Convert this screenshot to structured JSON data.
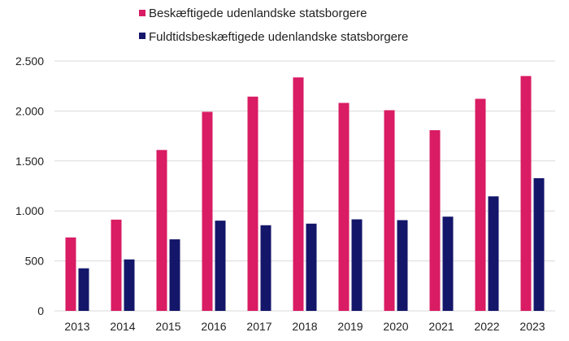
{
  "chart_data": {
    "type": "bar",
    "title": "",
    "xlabel": "",
    "ylabel": "",
    "ylim": [
      0,
      2500
    ],
    "yticks": [
      0,
      500,
      1000,
      1500,
      2000,
      2500
    ],
    "ytick_labels": [
      "0",
      "500",
      "1.000",
      "1.500",
      "2.000",
      "2.500"
    ],
    "grid": true,
    "legend_placement": "top",
    "categories": [
      "2013",
      "2014",
      "2015",
      "2016",
      "2017",
      "2018",
      "2019",
      "2020",
      "2021",
      "2022",
      "2023"
    ],
    "series": [
      {
        "name": "Beskæftigede udenlandske statsborgere",
        "color": "#D91C63",
        "values": [
          735,
          913,
          1610,
          1992,
          2144,
          2336,
          2081,
          2008,
          1808,
          2122,
          2350
        ]
      },
      {
        "name": "Fuldtidsbeskæftigede udenlandske statsborgere",
        "color": "#14166A",
        "values": [
          426,
          515,
          716,
          903,
          857,
          873,
          916,
          908,
          943,
          1146,
          1328
        ]
      }
    ]
  }
}
